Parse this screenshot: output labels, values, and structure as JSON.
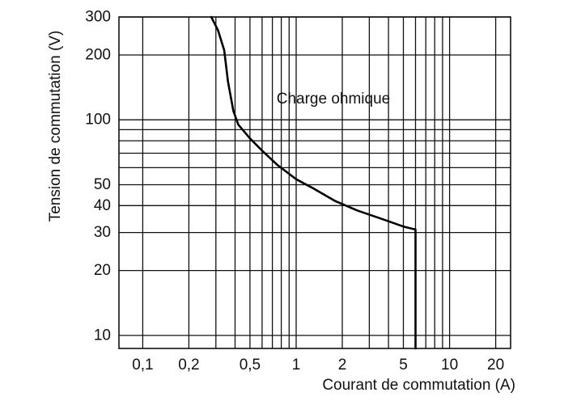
{
  "chart_data": {
    "type": "line",
    "title": "",
    "xlabel": "Courant de commutation (A)",
    "ylabel": "Tension de commutation (V)",
    "xscale": "log",
    "yscale": "log",
    "xlim": [
      0.07,
      25
    ],
    "ylim": [
      8.7,
      300
    ],
    "grid": true,
    "legend": "none",
    "x_ticks": [
      {
        "value": 0.1,
        "label": "0,1"
      },
      {
        "value": 0.2,
        "label": "0,2"
      },
      {
        "value": 0.5,
        "label": "0,5"
      },
      {
        "value": 1,
        "label": "1"
      },
      {
        "value": 2,
        "label": "2"
      },
      {
        "value": 5,
        "label": "5"
      },
      {
        "value": 10,
        "label": "10"
      },
      {
        "value": 20,
        "label": "20"
      }
    ],
    "y_ticks": [
      {
        "value": 10,
        "label": "10"
      },
      {
        "value": 20,
        "label": "20"
      },
      {
        "value": 30,
        "label": "30"
      },
      {
        "value": 40,
        "label": "40"
      },
      {
        "value": 50,
        "label": "50"
      },
      {
        "value": 100,
        "label": "100"
      },
      {
        "value": 200,
        "label": "200"
      },
      {
        "value": 300,
        "label": "300"
      }
    ],
    "x_gridlines": [
      0.1,
      0.2,
      0.3,
      0.4,
      0.5,
      0.6,
      0.7,
      0.8,
      0.9,
      1,
      2,
      3,
      4,
      5,
      6,
      7,
      8,
      9,
      10,
      20
    ],
    "y_gridlines": [
      10,
      20,
      30,
      40,
      50,
      60,
      70,
      80,
      90,
      100,
      200,
      300
    ],
    "annotations": [
      {
        "text": "Charge ohmique",
        "x": 1.75,
        "y": 125
      }
    ],
    "series": [
      {
        "color": "#000000",
        "points": [
          {
            "x": 0.28,
            "y": 300
          },
          {
            "x": 0.31,
            "y": 260
          },
          {
            "x": 0.34,
            "y": 210
          },
          {
            "x": 0.36,
            "y": 150
          },
          {
            "x": 0.39,
            "y": 110
          },
          {
            "x": 0.42,
            "y": 95
          },
          {
            "x": 0.5,
            "y": 82
          },
          {
            "x": 0.6,
            "y": 72
          },
          {
            "x": 0.75,
            "y": 62
          },
          {
            "x": 1.0,
            "y": 53
          },
          {
            "x": 1.3,
            "y": 48
          },
          {
            "x": 1.8,
            "y": 42
          },
          {
            "x": 2.5,
            "y": 38
          },
          {
            "x": 3.5,
            "y": 35
          },
          {
            "x": 5.0,
            "y": 32
          },
          {
            "x": 6.0,
            "y": 31
          },
          {
            "x": 6.0,
            "y": 8.7
          }
        ]
      }
    ]
  }
}
